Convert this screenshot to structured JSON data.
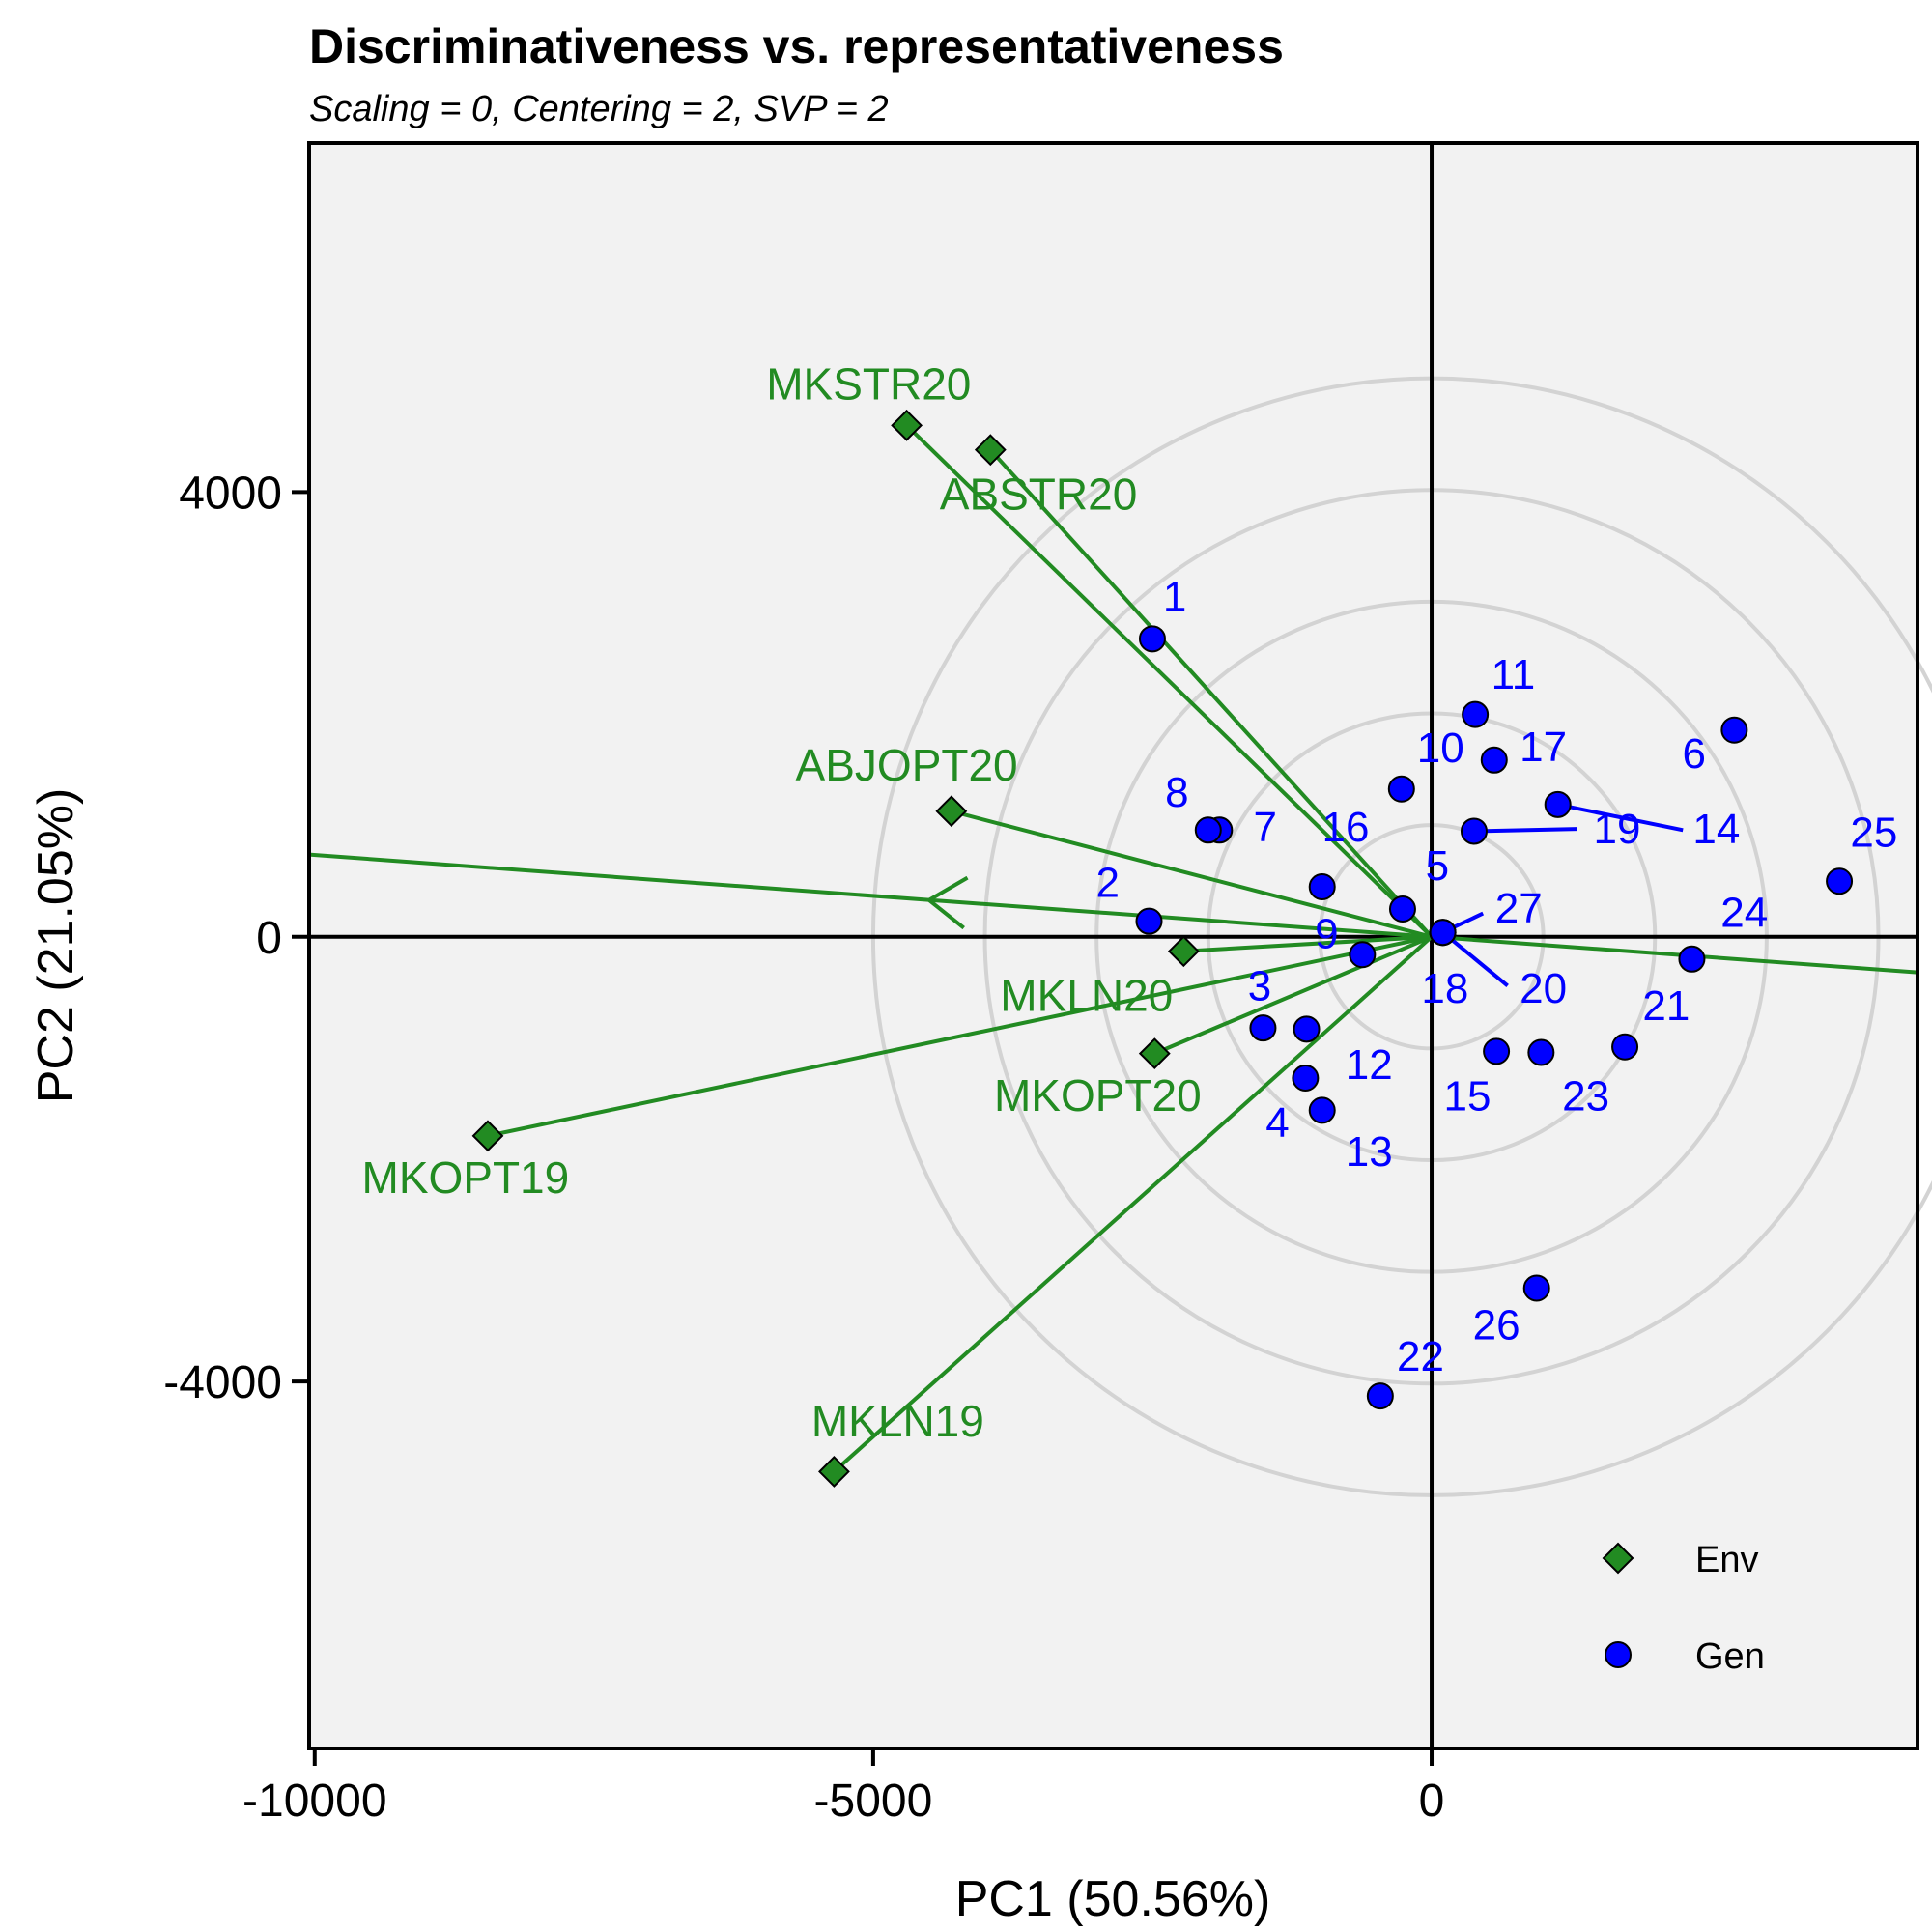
{
  "chart_data": {
    "type": "scatter",
    "title": "Discriminativeness vs. representativeness",
    "subtitle": "Scaling = 0, Centering = 2, SVP = 2",
    "xlabel": "PC1 (50.56%)",
    "ylabel": "PC2 (21.05%)",
    "xlim": [
      -10050,
      4350
    ],
    "ylim": [
      -7300,
      7140
    ],
    "xticks": [
      {
        "value": -10000,
        "label": "-10000"
      },
      {
        "value": -5000,
        "label": "-5000"
      },
      {
        "value": 0,
        "label": "0"
      }
    ],
    "yticks": [
      {
        "value": 4000,
        "label": "4000"
      },
      {
        "value": 0,
        "label": "0"
      },
      {
        "value": -4000,
        "label": "-4000"
      }
    ],
    "grid": false,
    "legend_position": "bottom-right",
    "concentric_circle_radii": [
      1000,
      2000,
      3000,
      4000,
      5000
    ],
    "colors": {
      "env": "#228B22",
      "gen": "#0000FF",
      "circles": "#D3D3D3",
      "panel": "#F2F2F2"
    },
    "series": [
      {
        "name": "Env",
        "marker": "diamond",
        "points": [
          {
            "label": "MKSTR20",
            "x": -4700,
            "y": 4600,
            "lx": -5040,
            "ly": 4940
          },
          {
            "label": "ABSTR20",
            "x": -3950,
            "y": 4380,
            "lx": -3520,
            "ly": 3950
          },
          {
            "label": "ABJOPT20",
            "x": -4300,
            "y": 1130,
            "lx": -4700,
            "ly": 1510
          },
          {
            "label": "MKLN20",
            "x": -2220,
            "y": -130,
            "lx": -3090,
            "ly": -560
          },
          {
            "label": "MKOPT20",
            "x": -2480,
            "y": -1050,
            "lx": -2990,
            "ly": -1460
          },
          {
            "label": "MKOPT19",
            "x": -8450,
            "y": -1790,
            "lx": -8650,
            "ly": -2200
          },
          {
            "label": "MKLN19",
            "x": -5350,
            "y": -4810,
            "lx": -4780,
            "ly": -4390
          }
        ]
      },
      {
        "name": "Gen",
        "marker": "circle",
        "points": [
          {
            "label": "1",
            "x": -2500,
            "y": 2680,
            "lx": -2300,
            "ly": 3030
          },
          {
            "label": "2",
            "x": -2530,
            "y": 140,
            "lx": -2900,
            "ly": 460
          },
          {
            "label": "3",
            "x": -1510,
            "y": -820,
            "lx": -1540,
            "ly": -470
          },
          {
            "label": "4",
            "x": -1130,
            "y": -1270,
            "lx": -1380,
            "ly": -1700
          },
          {
            "label": "5",
            "x": -260,
            "y": 250,
            "lx": 50,
            "ly": 610
          },
          {
            "label": "6",
            "x": 2710,
            "y": 1860,
            "lx": 2350,
            "ly": 1620
          },
          {
            "label": "7",
            "x": -1900,
            "y": 960,
            "lx": -1490,
            "ly": 960
          },
          {
            "label": "8",
            "x": -2000,
            "y": 960,
            "lx": -2280,
            "ly": 1270
          },
          {
            "label": "9",
            "x": -620,
            "y": -160,
            "lx": -940,
            "ly": 0
          },
          {
            "label": "10",
            "x": -270,
            "y": 1330,
            "lx": 80,
            "ly": 1670
          },
          {
            "label": "11",
            "x": 390,
            "y": 2000,
            "lx": 730,
            "ly": 2330
          },
          {
            "label": "12",
            "x": -1120,
            "y": -830,
            "lx": -560,
            "ly": -1180
          },
          {
            "label": "13",
            "x": -980,
            "y": -1560,
            "lx": -560,
            "ly": -1960
          },
          {
            "label": "14",
            "x": 1130,
            "y": 1190,
            "lx": 2550,
            "ly": 940
          },
          {
            "label": "15",
            "x": 580,
            "y": -1030,
            "lx": 320,
            "ly": -1460
          },
          {
            "label": "16",
            "x": -980,
            "y": 450,
            "lx": -770,
            "ly": 960
          },
          {
            "label": "17",
            "x": 560,
            "y": 1590,
            "lx": 1000,
            "ly": 1680
          },
          {
            "label": "18",
            "x": 100,
            "y": 40,
            "lx": 120,
            "ly": -490
          },
          {
            "label": "19",
            "x": 380,
            "y": 950,
            "lx": 1660,
            "ly": 940
          },
          {
            "label": "20",
            "x": 100,
            "y": 40,
            "lx": 1000,
            "ly": -490
          },
          {
            "label": "21",
            "x": 1730,
            "y": -990,
            "lx": 2100,
            "ly": -650
          },
          {
            "label": "22",
            "x": -460,
            "y": -4130,
            "lx": -100,
            "ly": -3800
          },
          {
            "label": "23",
            "x": 980,
            "y": -1040,
            "lx": 1380,
            "ly": -1460
          },
          {
            "label": "24",
            "x": 2330,
            "y": -200,
            "lx": 2800,
            "ly": 190
          },
          {
            "label": "25",
            "x": 3650,
            "y": 500,
            "lx": 3960,
            "ly": 910
          },
          {
            "label": "26",
            "x": 940,
            "y": -3160,
            "lx": 580,
            "ly": -3520
          },
          {
            "label": "27",
            "x": 100,
            "y": 40,
            "lx": 780,
            "ly": 230
          }
        ]
      }
    ],
    "connectors": [
      {
        "from": [
          380,
          950
        ],
        "to": [
          1300,
          970
        ]
      },
      {
        "from": [
          1130,
          1190
        ],
        "to": [
          2250,
          960
        ]
      },
      {
        "from": [
          100,
          40
        ],
        "to": [
          460,
          210
        ]
      },
      {
        "from": [
          100,
          40
        ],
        "to": [
          680,
          -440
        ]
      }
    ],
    "axis_line": {
      "direction": [
        -10050,
        740
      ],
      "reverse": [
        4350,
        -320
      ],
      "arrow_tip": [
        -4500,
        330
      ]
    }
  }
}
